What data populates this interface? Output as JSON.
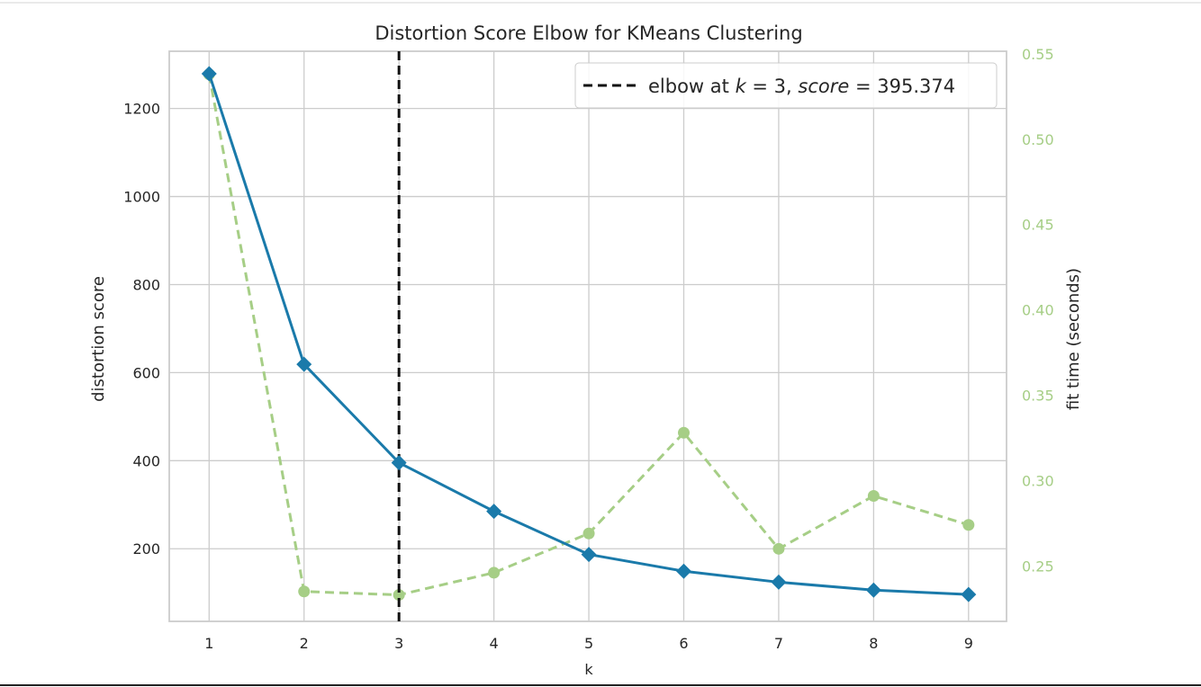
{
  "chart_data": {
    "type": "line",
    "title": "Distortion Score Elbow for KMeans Clustering",
    "xlabel": "k",
    "ylabel": "distortion score",
    "y2label": "fit time (seconds)",
    "x": [
      1,
      2,
      3,
      4,
      5,
      6,
      7,
      8,
      9
    ],
    "xticks": [
      "1",
      "2",
      "3",
      "4",
      "5",
      "6",
      "7",
      "8",
      "9"
    ],
    "xlim": [
      0.58,
      9.4
    ],
    "ylim": [
      35,
      1330
    ],
    "yticks": [
      200,
      400,
      600,
      800,
      1000,
      1200
    ],
    "y2lim": [
      0.2175,
      0.5515
    ],
    "y2ticks": [
      "0.25",
      "0.30",
      "0.35",
      "0.40",
      "0.45",
      "0.50",
      "0.55"
    ],
    "series": [
      {
        "name": "distortion score",
        "axis": "left",
        "values": [
          1279,
          619,
          395.374,
          285,
          187,
          149,
          124,
          106,
          96
        ],
        "color": "#1a7aaa",
        "style": "solid",
        "marker": "diamond"
      },
      {
        "name": "fit time (seconds)",
        "axis": "right",
        "values": [
          0.538,
          0.235,
          0.233,
          0.246,
          0.269,
          0.328,
          0.26,
          0.291,
          0.274
        ],
        "color": "#a6ce86",
        "style": "dashed",
        "marker": "circle"
      }
    ],
    "elbow": {
      "k": 3,
      "score": 395.374,
      "legend_prefix": "elbow at ",
      "legend_k_symbol": "k",
      "legend_eq1": " = 3, ",
      "legend_score_symbol": "score",
      "legend_eq2": " = 395.374"
    },
    "grid": true,
    "legend_position": "top-right",
    "colors": {
      "left_axis_text": "#262626",
      "right_axis_text": "#a6ce86",
      "grid": "#cccccc",
      "spine": "#cccccc",
      "elbow_line": "#111111"
    }
  }
}
